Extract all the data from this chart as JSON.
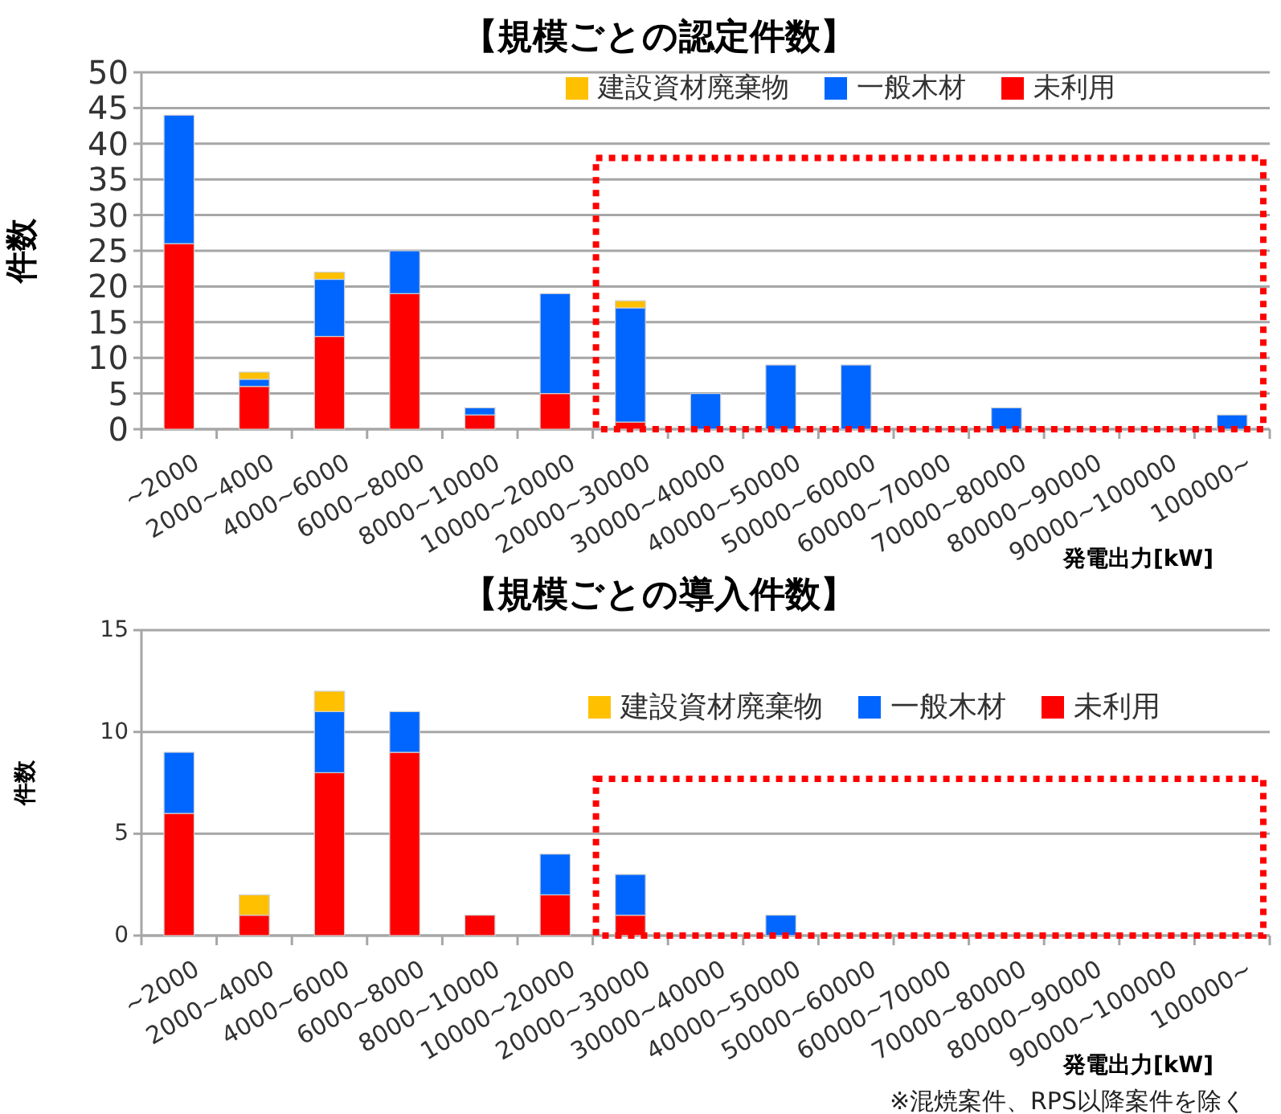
{
  "chart_data": [
    {
      "type": "bar",
      "title": "【規模ごとの認定件数】",
      "xlabel": "発電出力[kW]",
      "ylabel": "件数",
      "stacked": true,
      "grid": "y",
      "legend": "top right",
      "categories": [
        "~2000",
        "2000~4000",
        "4000~6000",
        "6000~8000",
        "8000~10000",
        "10000~20000",
        "20000~30000",
        "30000~40000",
        "40000~50000",
        "50000~60000",
        "60000~70000",
        "70000~80000",
        "80000~90000",
        "90000~100000",
        "100000~"
      ],
      "ylim": [
        0,
        50
      ],
      "yticks": [
        0,
        5,
        10,
        15,
        20,
        25,
        30,
        35,
        40,
        45,
        50
      ],
      "series": [
        {
          "name": "未利用",
          "color": "#ff0000",
          "values": [
            26,
            6,
            13,
            19,
            2,
            5,
            1,
            0,
            0,
            0,
            0,
            0,
            0,
            0,
            0
          ]
        },
        {
          "name": "一般木材",
          "color": "#0066ff",
          "values": [
            18,
            1,
            8,
            6,
            1,
            14,
            16,
            5,
            9,
            9,
            0,
            3,
            0,
            0,
            2
          ]
        },
        {
          "name": "建設資材廃棄物",
          "color": "#ffc000",
          "values": [
            0,
            1,
            1,
            0,
            0,
            0,
            1,
            0,
            0,
            0,
            0,
            0,
            0,
            0,
            0
          ]
        }
      ]
    },
    {
      "type": "bar",
      "title": "【規模ごとの導入件数】",
      "xlabel": "発電出力[kW]",
      "ylabel": "件数",
      "stacked": true,
      "grid": "y",
      "legend": "top right",
      "categories": [
        "~2000",
        "2000~4000",
        "4000~6000",
        "6000~8000",
        "8000~10000",
        "10000~20000",
        "20000~30000",
        "30000~40000",
        "40000~50000",
        "50000~60000",
        "60000~70000",
        "70000~80000",
        "80000~90000",
        "90000~100000",
        "100000~"
      ],
      "ylim": [
        0,
        15
      ],
      "yticks": [
        0,
        5,
        10,
        15
      ],
      "annotations": [
        "※混焼案件、RPS以降案件を除く"
      ],
      "series": [
        {
          "name": "未利用",
          "color": "#ff0000",
          "values": [
            6,
            1,
            8,
            9,
            1,
            2,
            1,
            0,
            0,
            0,
            0,
            0,
            0,
            0,
            0
          ]
        },
        {
          "name": "一般木材",
          "color": "#0066ff",
          "values": [
            3,
            0,
            3,
            2,
            0,
            2,
            2,
            0,
            1,
            0,
            0,
            0,
            0,
            0,
            0
          ]
        },
        {
          "name": "建設資材廃棄物",
          "color": "#ffc000",
          "values": [
            0,
            1,
            1,
            0,
            0,
            0,
            0,
            0,
            0,
            0,
            0,
            0,
            0,
            0,
            0
          ]
        }
      ]
    }
  ]
}
